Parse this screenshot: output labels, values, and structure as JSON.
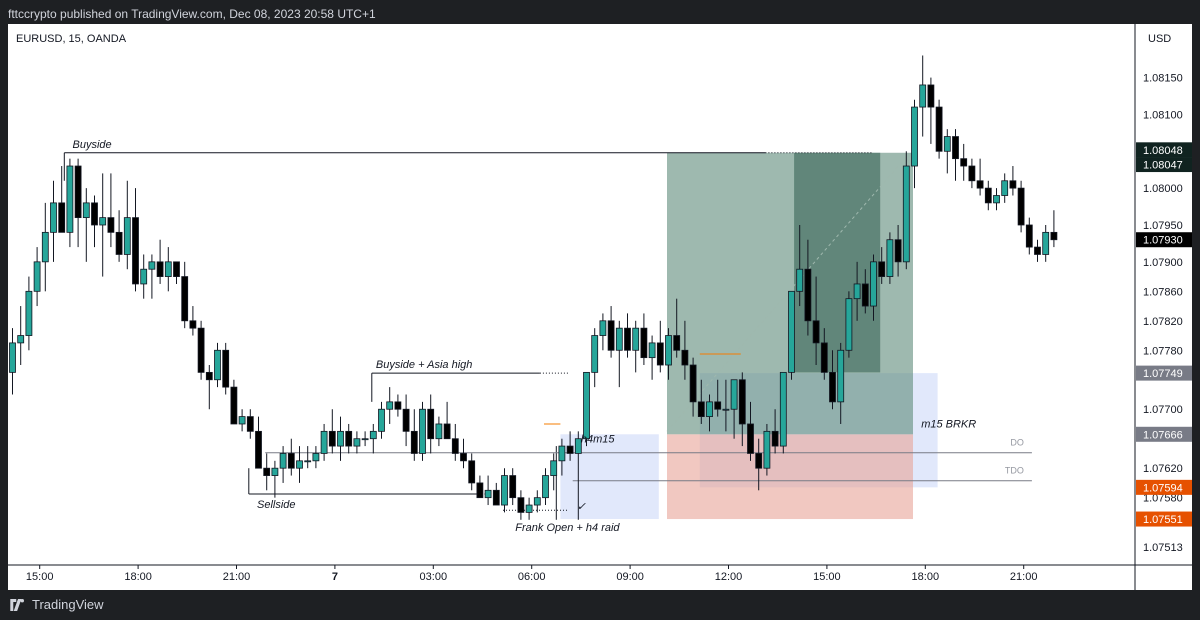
{
  "header": {
    "publisher_line": "fttccrypto published on TradingView.com, Dec 08, 2023 20:58 UTC+1"
  },
  "footer": {
    "brand": "TradingView"
  },
  "colors": {
    "bull": "#26a69a",
    "bear": "#000000",
    "long_zone": "#5e8a7a",
    "stop_zone": "#e8a397",
    "fvg": "#c9d5f7",
    "marker_orange": "#f57c00",
    "price_dark": "#102320"
  },
  "chart_data": {
    "type": "candlestick",
    "symbol_line": "EURUSD, 15, OANDA",
    "currency": "USD",
    "ylim": [
      1.0749,
      1.0822
    ],
    "x_ticks": [
      {
        "label": "15:00",
        "idx": 3.5
      },
      {
        "label": "18:00",
        "idx": 15.5
      },
      {
        "label": "21:00",
        "idx": 27.5
      },
      {
        "label": "7",
        "idx": 39.5
      },
      {
        "label": "03:00",
        "idx": 51.5
      },
      {
        "label": "06:00",
        "idx": 63.5
      },
      {
        "label": "09:00",
        "idx": 75.5
      },
      {
        "label": "12:00",
        "idx": 87.5
      },
      {
        "label": "15:00",
        "idx": 99.5
      },
      {
        "label": "18:00",
        "idx": 111.5
      },
      {
        "label": "21:00",
        "idx": 123.5
      }
    ],
    "y_ticks": [
      1.0815,
      1.081,
      1.08,
      1.0795,
      1.079,
      1.0786,
      1.0782,
      1.0778,
      1.077,
      1.0762,
      1.0758,
      1.07513
    ],
    "y_tick_labels": [
      "1.08150",
      "1.08100",
      "1.08000",
      "1.07950",
      "1.07900",
      "1.07860",
      "1.07820",
      "1.07780",
      "1.07700",
      "1.07620",
      "1.07580",
      "1.07513"
    ],
    "price_tags": [
      {
        "label": "1.08048",
        "value": 1.08052,
        "color": "#102320"
      },
      {
        "label": "1.08047",
        "value": 1.08032,
        "color": "#102320"
      },
      {
        "label": "1.07930",
        "value": 1.0793,
        "color": "#000000"
      },
      {
        "label": "1.07749",
        "value": 1.07749,
        "color": "#787b86"
      },
      {
        "label": "1.07666",
        "value": 1.07666,
        "color": "#787b86"
      },
      {
        "label": "1.07594",
        "value": 1.07594,
        "color": "#e65100"
      },
      {
        "label": "1.07551",
        "value": 1.07551,
        "color": "#e65100"
      }
    ],
    "candles": [
      {
        "o": 1.0775,
        "h": 1.0781,
        "l": 1.0772,
        "c": 1.0779
      },
      {
        "o": 1.0779,
        "h": 1.0784,
        "l": 1.0776,
        "c": 1.078
      },
      {
        "o": 1.078,
        "h": 1.0788,
        "l": 1.0778,
        "c": 1.0786
      },
      {
        "o": 1.0786,
        "h": 1.0792,
        "l": 1.0784,
        "c": 1.079
      },
      {
        "o": 1.079,
        "h": 1.0798,
        "l": 1.0786,
        "c": 1.0794
      },
      {
        "o": 1.0794,
        "h": 1.0801,
        "l": 1.079,
        "c": 1.0798
      },
      {
        "o": 1.0798,
        "h": 1.0803,
        "l": 1.0794,
        "c": 1.0794
      },
      {
        "o": 1.0794,
        "h": 1.0804,
        "l": 1.0792,
        "c": 1.0803
      },
      {
        "o": 1.0803,
        "h": 1.0804,
        "l": 1.0792,
        "c": 1.0796
      },
      {
        "o": 1.0796,
        "h": 1.08,
        "l": 1.079,
        "c": 1.0798
      },
      {
        "o": 1.0798,
        "h": 1.0799,
        "l": 1.0792,
        "c": 1.0795
      },
      {
        "o": 1.0795,
        "h": 1.0802,
        "l": 1.0788,
        "c": 1.0796
      },
      {
        "o": 1.0796,
        "h": 1.0802,
        "l": 1.0792,
        "c": 1.0794
      },
      {
        "o": 1.0794,
        "h": 1.0797,
        "l": 1.079,
        "c": 1.0791
      },
      {
        "o": 1.0791,
        "h": 1.0801,
        "l": 1.0789,
        "c": 1.0796
      },
      {
        "o": 1.0796,
        "h": 1.08,
        "l": 1.0786,
        "c": 1.0787
      },
      {
        "o": 1.0787,
        "h": 1.0791,
        "l": 1.0785,
        "c": 1.0789
      },
      {
        "o": 1.0789,
        "h": 1.0791,
        "l": 1.0785,
        "c": 1.079
      },
      {
        "o": 1.079,
        "h": 1.0793,
        "l": 1.0787,
        "c": 1.0788
      },
      {
        "o": 1.0788,
        "h": 1.0792,
        "l": 1.0786,
        "c": 1.079
      },
      {
        "o": 1.079,
        "h": 1.079,
        "l": 1.0787,
        "c": 1.0788
      },
      {
        "o": 1.0788,
        "h": 1.079,
        "l": 1.0781,
        "c": 1.0782
      },
      {
        "o": 1.0782,
        "h": 1.0784,
        "l": 1.078,
        "c": 1.0781
      },
      {
        "o": 1.0781,
        "h": 1.0782,
        "l": 1.0774,
        "c": 1.0775
      },
      {
        "o": 1.0775,
        "h": 1.0776,
        "l": 1.077,
        "c": 1.0774
      },
      {
        "o": 1.0774,
        "h": 1.0779,
        "l": 1.0773,
        "c": 1.0778
      },
      {
        "o": 1.0778,
        "h": 1.0779,
        "l": 1.0772,
        "c": 1.0773
      },
      {
        "o": 1.0773,
        "h": 1.0774,
        "l": 1.0768,
        "c": 1.0768
      },
      {
        "o": 1.0768,
        "h": 1.077,
        "l": 1.0767,
        "c": 1.0769
      },
      {
        "o": 1.0769,
        "h": 1.077,
        "l": 1.0766,
        "c": 1.0767
      },
      {
        "o": 1.0767,
        "h": 1.0769,
        "l": 1.0762,
        "c": 1.0762
      },
      {
        "o": 1.0762,
        "h": 1.0764,
        "l": 1.0759,
        "c": 1.0761
      },
      {
        "o": 1.0761,
        "h": 1.0763,
        "l": 1.0758,
        "c": 1.0762
      },
      {
        "o": 1.0762,
        "h": 1.0765,
        "l": 1.076,
        "c": 1.0764
      },
      {
        "o": 1.0764,
        "h": 1.0766,
        "l": 1.0761,
        "c": 1.0762
      },
      {
        "o": 1.0762,
        "h": 1.0765,
        "l": 1.076,
        "c": 1.0763
      },
      {
        "o": 1.0763,
        "h": 1.0765,
        "l": 1.0762,
        "c": 1.0763
      },
      {
        "o": 1.0763,
        "h": 1.0765,
        "l": 1.0762,
        "c": 1.0764
      },
      {
        "o": 1.0764,
        "h": 1.0768,
        "l": 1.0763,
        "c": 1.0767
      },
      {
        "o": 1.0767,
        "h": 1.077,
        "l": 1.0764,
        "c": 1.0765
      },
      {
        "o": 1.0765,
        "h": 1.0769,
        "l": 1.0763,
        "c": 1.0767
      },
      {
        "o": 1.0767,
        "h": 1.0768,
        "l": 1.0764,
        "c": 1.0765
      },
      {
        "o": 1.0765,
        "h": 1.0767,
        "l": 1.0764,
        "c": 1.0766
      },
      {
        "o": 1.0766,
        "h": 1.0767,
        "l": 1.0765,
        "c": 1.0766
      },
      {
        "o": 1.0766,
        "h": 1.0768,
        "l": 1.0764,
        "c": 1.0767
      },
      {
        "o": 1.0767,
        "h": 1.0771,
        "l": 1.0766,
        "c": 1.077
      },
      {
        "o": 1.077,
        "h": 1.0773,
        "l": 1.0768,
        "c": 1.0771
      },
      {
        "o": 1.0771,
        "h": 1.0772,
        "l": 1.0769,
        "c": 1.077
      },
      {
        "o": 1.077,
        "h": 1.0772,
        "l": 1.0765,
        "c": 1.0767
      },
      {
        "o": 1.0767,
        "h": 1.077,
        "l": 1.0763,
        "c": 1.0764
      },
      {
        "o": 1.0764,
        "h": 1.0771,
        "l": 1.0763,
        "c": 1.077
      },
      {
        "o": 1.077,
        "h": 1.0772,
        "l": 1.0764,
        "c": 1.0766
      },
      {
        "o": 1.0766,
        "h": 1.0769,
        "l": 1.0765,
        "c": 1.0768
      },
      {
        "o": 1.0768,
        "h": 1.0771,
        "l": 1.0766,
        "c": 1.0766
      },
      {
        "o": 1.0766,
        "h": 1.0768,
        "l": 1.0763,
        "c": 1.0764
      },
      {
        "o": 1.0764,
        "h": 1.0766,
        "l": 1.0762,
        "c": 1.0763
      },
      {
        "o": 1.0763,
        "h": 1.0764,
        "l": 1.0759,
        "c": 1.076
      },
      {
        "o": 1.076,
        "h": 1.0761,
        "l": 1.0758,
        "c": 1.0758
      },
      {
        "o": 1.0758,
        "h": 1.0761,
        "l": 1.0757,
        "c": 1.0759
      },
      {
        "o": 1.0759,
        "h": 1.076,
        "l": 1.0757,
        "c": 1.0757
      },
      {
        "o": 1.0757,
        "h": 1.0762,
        "l": 1.0756,
        "c": 1.0761
      },
      {
        "o": 1.0761,
        "h": 1.0762,
        "l": 1.0757,
        "c": 1.0758
      },
      {
        "o": 1.0758,
        "h": 1.0759,
        "l": 1.0755,
        "c": 1.0756
      },
      {
        "o": 1.0756,
        "h": 1.0758,
        "l": 1.0755,
        "c": 1.0757
      },
      {
        "o": 1.0757,
        "h": 1.0759,
        "l": 1.0756,
        "c": 1.0758
      },
      {
        "o": 1.0758,
        "h": 1.0762,
        "l": 1.0757,
        "c": 1.0761
      },
      {
        "o": 1.0761,
        "h": 1.0764,
        "l": 1.0759,
        "c": 1.0763
      },
      {
        "o": 1.0763,
        "h": 1.0766,
        "l": 1.0761,
        "c": 1.0765
      },
      {
        "o": 1.0765,
        "h": 1.0767,
        "l": 1.0763,
        "c": 1.0764
      },
      {
        "o": 1.0764,
        "h": 1.0767,
        "l": 1.0755,
        "c": 1.0766
      },
      {
        "o": 1.0766,
        "h": 1.0775,
        "l": 1.0765,
        "c": 1.0775
      },
      {
        "o": 1.0775,
        "h": 1.0781,
        "l": 1.0773,
        "c": 1.078
      },
      {
        "o": 1.078,
        "h": 1.0783,
        "l": 1.0778,
        "c": 1.0782
      },
      {
        "o": 1.0782,
        "h": 1.0784,
        "l": 1.0777,
        "c": 1.0778
      },
      {
        "o": 1.0778,
        "h": 1.0782,
        "l": 1.0773,
        "c": 1.0781
      },
      {
        "o": 1.0781,
        "h": 1.0783,
        "l": 1.0777,
        "c": 1.0778
      },
      {
        "o": 1.0778,
        "h": 1.0782,
        "l": 1.0775,
        "c": 1.0781
      },
      {
        "o": 1.0781,
        "h": 1.0783,
        "l": 1.0776,
        "c": 1.0777
      },
      {
        "o": 1.0777,
        "h": 1.078,
        "l": 1.0774,
        "c": 1.0779
      },
      {
        "o": 1.0779,
        "h": 1.0782,
        "l": 1.0775,
        "c": 1.0776
      },
      {
        "o": 1.0776,
        "h": 1.0781,
        "l": 1.0774,
        "c": 1.078
      },
      {
        "o": 1.078,
        "h": 1.0785,
        "l": 1.0777,
        "c": 1.0778
      },
      {
        "o": 1.0778,
        "h": 1.0782,
        "l": 1.0774,
        "c": 1.0776
      },
      {
        "o": 1.0776,
        "h": 1.0777,
        "l": 1.0769,
        "c": 1.0771
      },
      {
        "o": 1.0771,
        "h": 1.0774,
        "l": 1.0768,
        "c": 1.0769
      },
      {
        "o": 1.0769,
        "h": 1.0772,
        "l": 1.0767,
        "c": 1.0771
      },
      {
        "o": 1.0771,
        "h": 1.0774,
        "l": 1.0769,
        "c": 1.077
      },
      {
        "o": 1.077,
        "h": 1.0774,
        "l": 1.0767,
        "c": 1.077
      },
      {
        "o": 1.077,
        "h": 1.0774,
        "l": 1.0766,
        "c": 1.0774
      },
      {
        "o": 1.0774,
        "h": 1.0775,
        "l": 1.0765,
        "c": 1.0768
      },
      {
        "o": 1.0768,
        "h": 1.0771,
        "l": 1.0763,
        "c": 1.0764
      },
      {
        "o": 1.0764,
        "h": 1.0766,
        "l": 1.0759,
        "c": 1.0762
      },
      {
        "o": 1.0762,
        "h": 1.0768,
        "l": 1.0761,
        "c": 1.0767
      },
      {
        "o": 1.0767,
        "h": 1.077,
        "l": 1.0764,
        "c": 1.0765
      },
      {
        "o": 1.0765,
        "h": 1.0775,
        "l": 1.0764,
        "c": 1.0775
      },
      {
        "o": 1.0775,
        "h": 1.0786,
        "l": 1.0774,
        "c": 1.0786
      },
      {
        "o": 1.0786,
        "h": 1.0795,
        "l": 1.0784,
        "c": 1.0789
      },
      {
        "o": 1.0789,
        "h": 1.0793,
        "l": 1.078,
        "c": 1.0782
      },
      {
        "o": 1.0782,
        "h": 1.0788,
        "l": 1.0776,
        "c": 1.0779
      },
      {
        "o": 1.0779,
        "h": 1.0781,
        "l": 1.0774,
        "c": 1.0775
      },
      {
        "o": 1.0775,
        "h": 1.0778,
        "l": 1.077,
        "c": 1.0771
      },
      {
        "o": 1.0771,
        "h": 1.0779,
        "l": 1.0768,
        "c": 1.0778
      },
      {
        "o": 1.0778,
        "h": 1.0786,
        "l": 1.0777,
        "c": 1.0785
      },
      {
        "o": 1.0785,
        "h": 1.079,
        "l": 1.0782,
        "c": 1.0787
      },
      {
        "o": 1.0787,
        "h": 1.0789,
        "l": 1.0783,
        "c": 1.0784
      },
      {
        "o": 1.0784,
        "h": 1.0791,
        "l": 1.0782,
        "c": 1.079
      },
      {
        "o": 1.079,
        "h": 1.0792,
        "l": 1.0787,
        "c": 1.0788
      },
      {
        "o": 1.0788,
        "h": 1.0794,
        "l": 1.0787,
        "c": 1.0793
      },
      {
        "o": 1.0793,
        "h": 1.0795,
        "l": 1.0788,
        "c": 1.079
      },
      {
        "o": 1.079,
        "h": 1.0805,
        "l": 1.0789,
        "c": 1.0803
      },
      {
        "o": 1.0803,
        "h": 1.0812,
        "l": 1.08,
        "c": 1.0811
      },
      {
        "o": 1.0811,
        "h": 1.0818,
        "l": 1.0807,
        "c": 1.0814
      },
      {
        "o": 1.0814,
        "h": 1.0815,
        "l": 1.0806,
        "c": 1.0811
      },
      {
        "o": 1.0811,
        "h": 1.0812,
        "l": 1.0804,
        "c": 1.0805
      },
      {
        "o": 1.0805,
        "h": 1.0808,
        "l": 1.0802,
        "c": 1.0807
      },
      {
        "o": 1.0807,
        "h": 1.0808,
        "l": 1.0801,
        "c": 1.0804
      },
      {
        "o": 1.0804,
        "h": 1.0806,
        "l": 1.0801,
        "c": 1.0803
      },
      {
        "o": 1.0803,
        "h": 1.0804,
        "l": 1.08,
        "c": 1.0801
      },
      {
        "o": 1.0801,
        "h": 1.0804,
        "l": 1.0799,
        "c": 1.08
      },
      {
        "o": 1.08,
        "h": 1.0801,
        "l": 1.0797,
        "c": 1.0798
      },
      {
        "o": 1.0798,
        "h": 1.08,
        "l": 1.0797,
        "c": 1.0799
      },
      {
        "o": 1.0799,
        "h": 1.0802,
        "l": 1.0798,
        "c": 1.0801
      },
      {
        "o": 1.0801,
        "h": 1.0803,
        "l": 1.0799,
        "c": 1.08
      },
      {
        "o": 1.08,
        "h": 1.0801,
        "l": 1.0794,
        "c": 1.0795
      },
      {
        "o": 1.0795,
        "h": 1.0796,
        "l": 1.0791,
        "c": 1.0792
      },
      {
        "o": 1.0792,
        "h": 1.0793,
        "l": 1.079,
        "c": 1.0791
      },
      {
        "o": 1.0791,
        "h": 1.0795,
        "l": 1.079,
        "c": 1.0794
      },
      {
        "o": 1.0794,
        "h": 1.0797,
        "l": 1.0792,
        "c": 1.0793
      }
    ],
    "zones": [
      {
        "name": "fvg-left",
        "i0": 67,
        "i1": 79,
        "top": 1.07666,
        "bot": 1.07551,
        "color": "#c9d5f7",
        "opacity": 0.55
      },
      {
        "name": "fvg-right",
        "i0": 84,
        "i1": 113,
        "top": 1.07749,
        "bot": 1.07594,
        "color": "#c9d5f7",
        "opacity": 0.55
      },
      {
        "name": "stop-zone",
        "i0": 80,
        "i1": 110,
        "top": 1.07666,
        "bot": 1.07551,
        "color": "#e8a397",
        "opacity": 0.6
      },
      {
        "name": "long-target-zone",
        "i0": 80,
        "i1": 110,
        "top": 1.08048,
        "bot": 1.07666,
        "color": "#5e8a7a",
        "opacity": 0.6
      },
      {
        "name": "long-target-inner",
        "i0": 95.5,
        "i1": 106,
        "top": 1.08048,
        "bot": 1.0775,
        "color": "#2f5d4e",
        "opacity": 0.55
      }
    ],
    "levels": [
      {
        "name": "buyside",
        "price": 1.08048,
        "i0": 6.5,
        "i1": 92,
        "label": "Buyside",
        "label_i": 7.5,
        "dotted_after": 92,
        "dotted_i1": 105
      },
      {
        "name": "buyside-asia-high",
        "price": 1.07749,
        "i0": 44,
        "i1": 64.5,
        "label": "Buyside + Asia high",
        "label_i": 44.5,
        "dotted_after": 64.5,
        "dotted_i1": 68
      },
      {
        "name": "sellside",
        "price": 1.07585,
        "i0": 29,
        "i1": 57,
        "label": "Sellside",
        "label_i": 30,
        "dotted_after": 57,
        "dotted_i1": 58
      }
    ],
    "h_lines": [
      {
        "name": "do-line",
        "price": 1.07641,
        "i0": 31,
        "i1": 124.5,
        "label": "DO",
        "color": "#9598a1"
      },
      {
        "name": "tdo-line",
        "price": 1.07603,
        "i0": 68.5,
        "i1": 124.5,
        "label": "TDO",
        "color": "#9598a1"
      }
    ],
    "annotations": [
      {
        "text": "Frank Open + h4 raid",
        "i": 61.5,
        "price": 1.07535
      },
      {
        "text": "h4m15",
        "i": 69.5,
        "price": 1.07655
      },
      {
        "text": "m15 BRKR",
        "i": 111,
        "price": 1.07675
      },
      {
        "text": "✓",
        "i": 69,
        "price": 1.07563
      }
    ]
  }
}
